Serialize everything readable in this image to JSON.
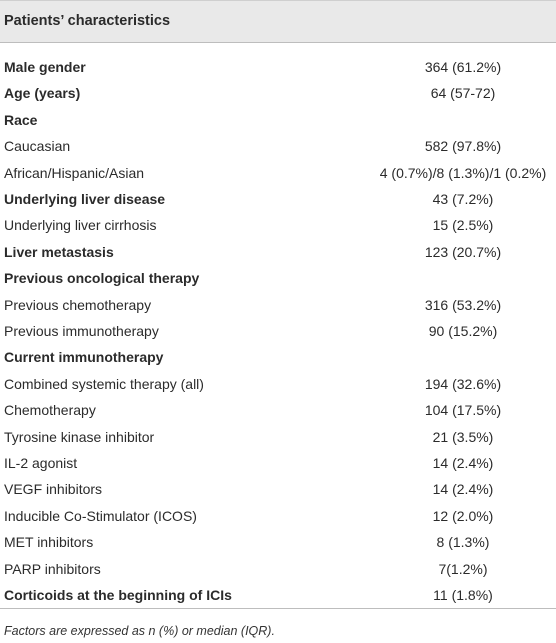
{
  "table": {
    "title": "Patients’ characteristics",
    "rows": [
      {
        "label": "Male gender",
        "value": "364 (61.2%)",
        "bold": true
      },
      {
        "label": "Age (years)",
        "value": "64 (57-72)",
        "bold": true
      },
      {
        "label": "Race",
        "bold": true
      },
      {
        "label": "Caucasian",
        "value": "582 (97.8%)"
      },
      {
        "label": "African/Hispanic/Asian",
        "value": "4 (0.7%)/8 (1.3%)/1 (0.2%)"
      },
      {
        "label": "Underlying liver disease",
        "value": "43 (7.2%)",
        "bold": true
      },
      {
        "label": "Underlying liver cirrhosis",
        "value": "15 (2.5%)"
      },
      {
        "label": "Liver metastasis",
        "value": "123 (20.7%)",
        "bold": true
      },
      {
        "label": "Previous oncological therapy",
        "bold": true
      },
      {
        "label": "Previous chemotherapy",
        "value": "316 (53.2%)"
      },
      {
        "label": "Previous immunotherapy",
        "value": "90 (15.2%)"
      },
      {
        "label": "Current immunotherapy",
        "bold": true
      },
      {
        "label": "Combined systemic therapy (all)",
        "value": "194 (32.6%)"
      },
      {
        "label": "Chemotherapy",
        "value": "104 (17.5%)"
      },
      {
        "label": "Tyrosine kinase inhibitor",
        "value": "21 (3.5%)"
      },
      {
        "label": "IL-2 agonist",
        "value": "14 (2.4%)"
      },
      {
        "label": "VEGF inhibitors",
        "value": "14 (2.4%)"
      },
      {
        "label": "Inducible Co-Stimulator (ICOS)",
        "value": "12 (2.0%)"
      },
      {
        "label": "MET inhibitors",
        "value": "8 (1.3%)"
      },
      {
        "label": "PARP inhibitors",
        "value": "7(1.2%)"
      },
      {
        "label": "Corticoids at the beginning of ICIs",
        "value": "11 (1.8%)",
        "bold": true
      }
    ],
    "footnote": "Factors are expressed as n (%) or median (IQR)."
  }
}
